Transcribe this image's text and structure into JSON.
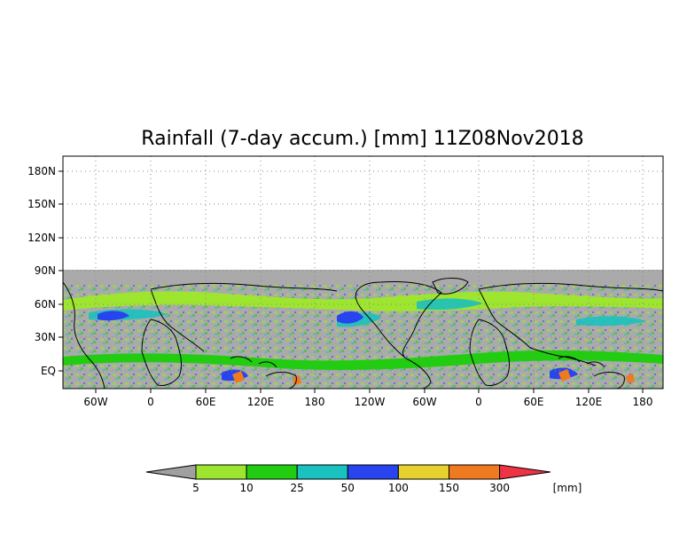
{
  "title": "Rainfall (7-day accum.) [mm] 11Z08Nov2018",
  "map": {
    "lat_labels": [
      "180N",
      "150N",
      "120N",
      "90N",
      "60N",
      "30N",
      "EQ"
    ],
    "lon_labels": [
      "60W",
      "0",
      "60E",
      "120E",
      "180",
      "120W",
      "60W",
      "0",
      "60E",
      "120E",
      "180"
    ],
    "no_data_color": "#aaaaaa",
    "land_outline_color": "#000000",
    "grid": "dotted"
  },
  "colorbar": {
    "unit": "[mm]",
    "breaks": [
      "5",
      "10",
      "25",
      "50",
      "100",
      "150",
      "300"
    ],
    "colors": [
      "#a0a0a0",
      "#9ee52f",
      "#22cc11",
      "#19c1bf",
      "#2844ee",
      "#e6d12e",
      "#f07a20",
      "#ee3344"
    ]
  }
}
